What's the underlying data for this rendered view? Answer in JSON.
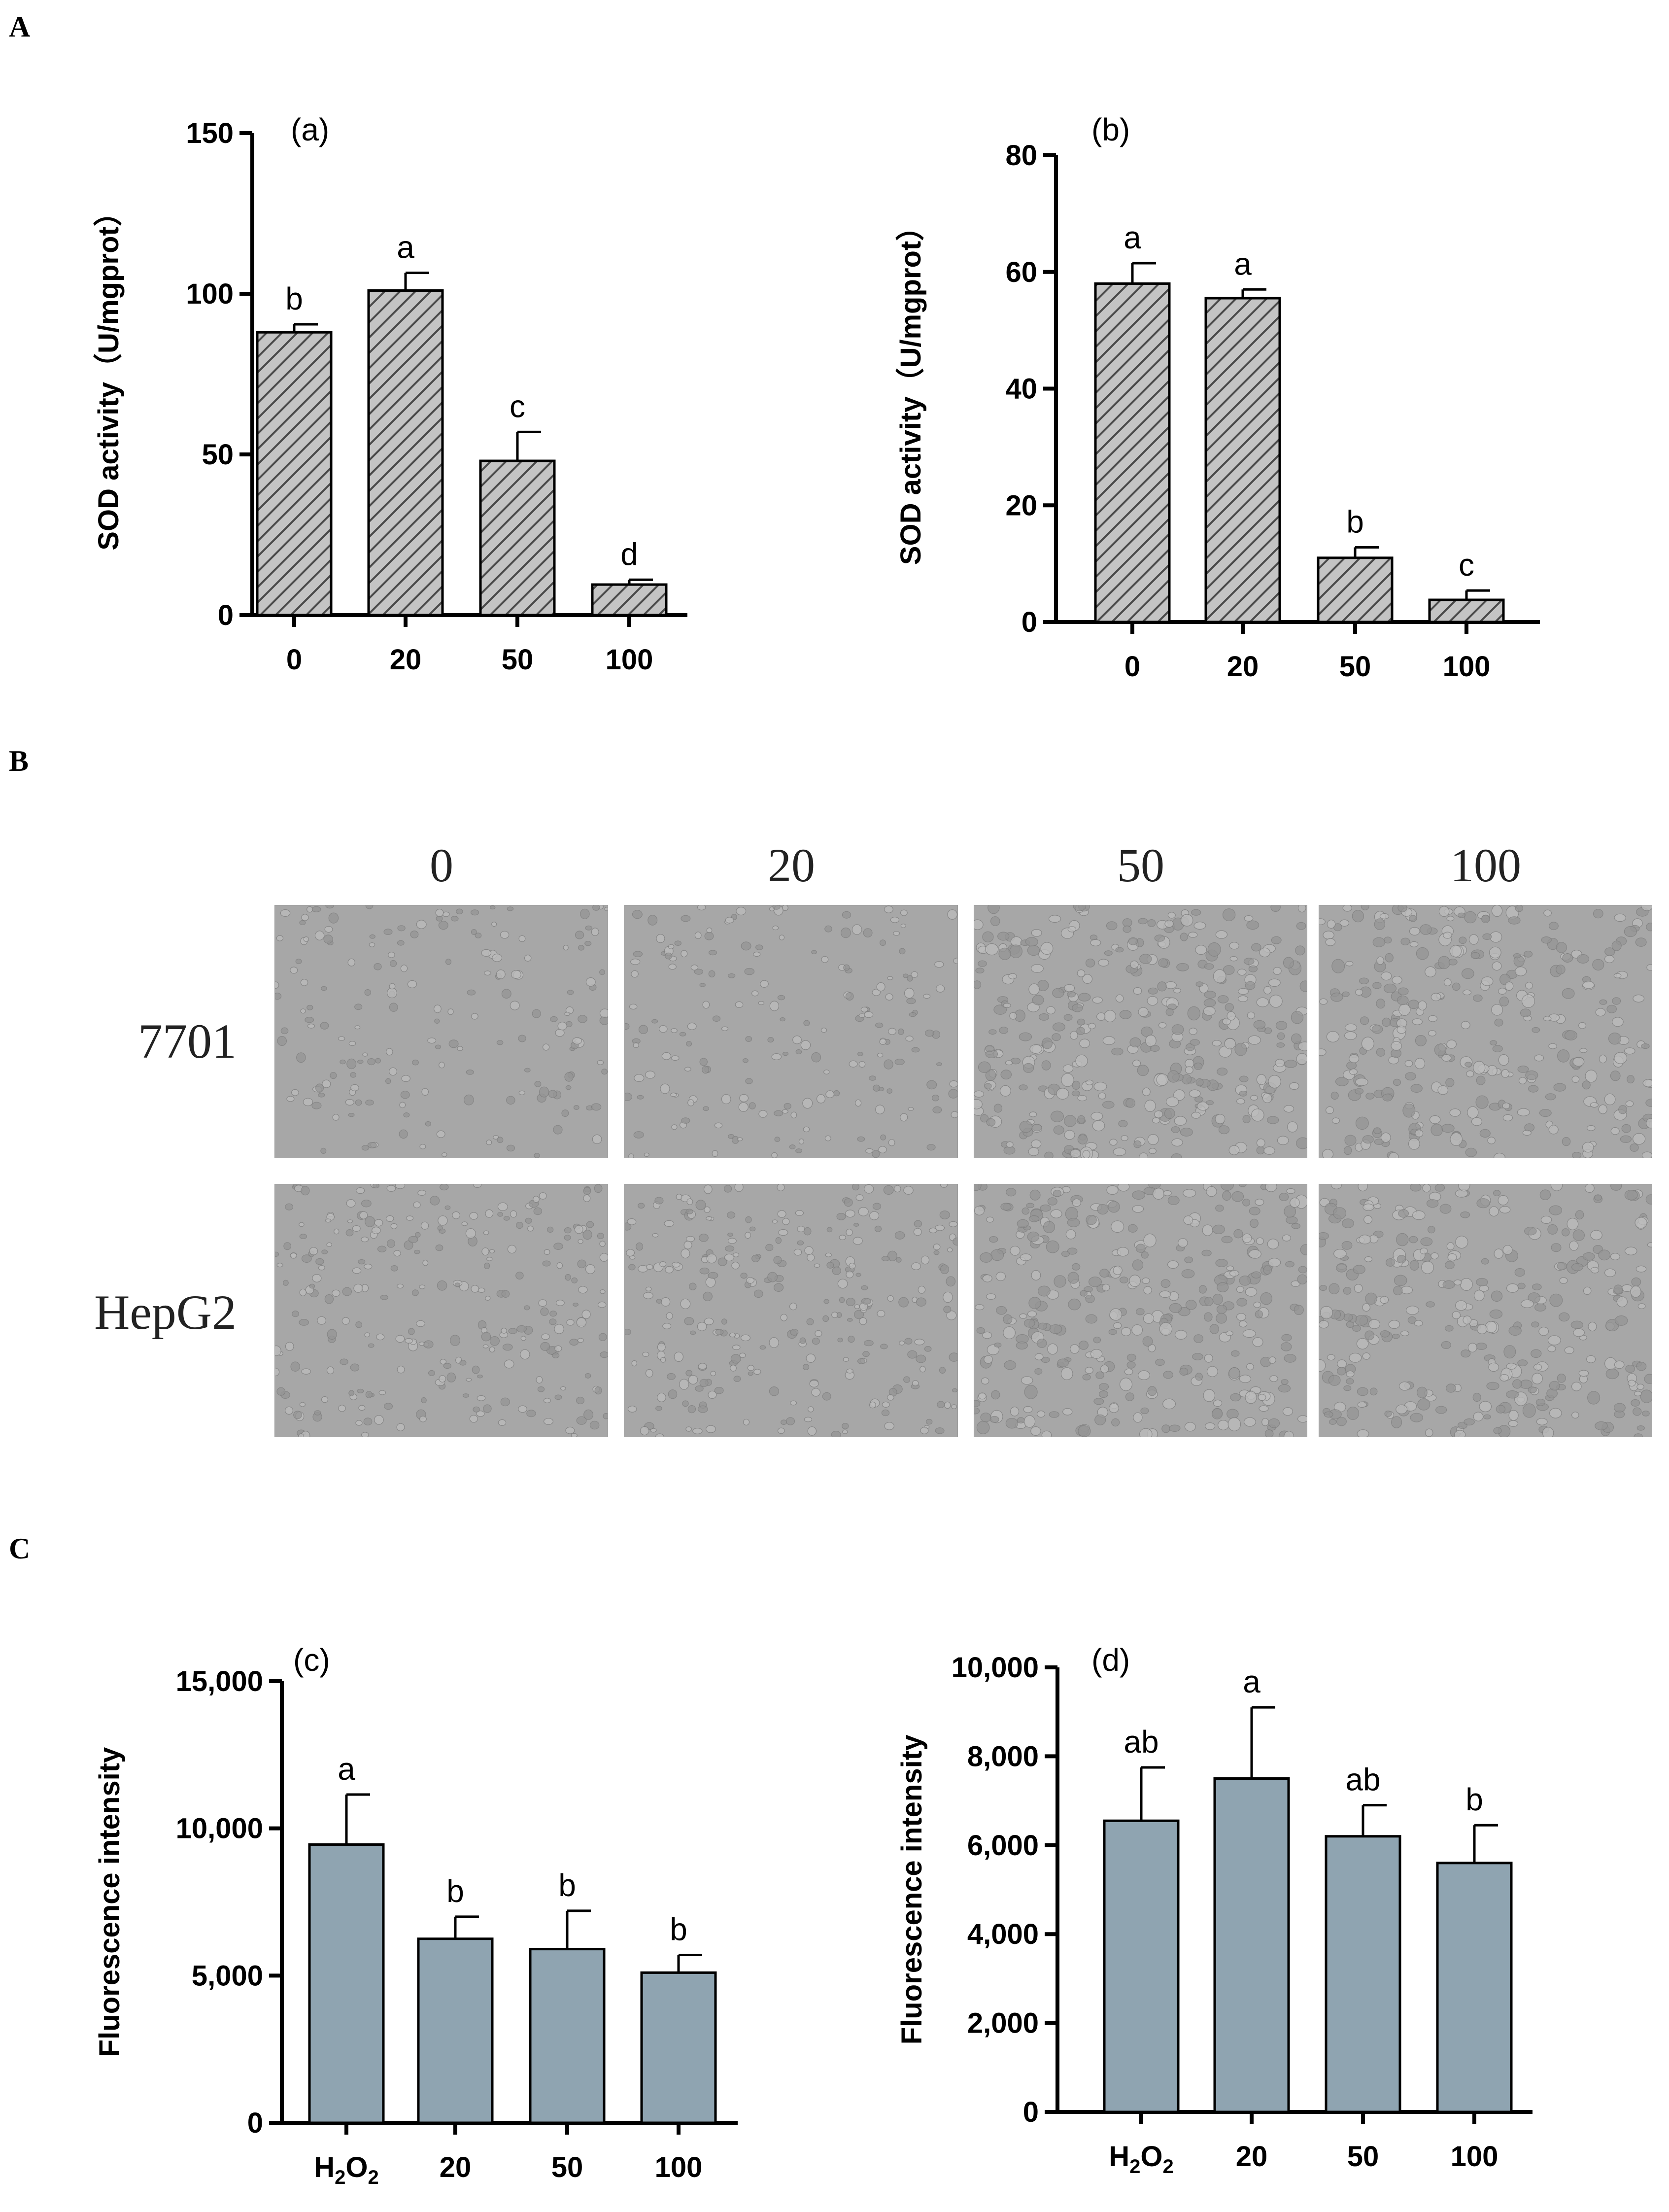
{
  "panel_labels": {
    "A": "A",
    "B": "B",
    "C": "C"
  },
  "chart_data": [
    {
      "id": "a",
      "type": "bar",
      "title": "(a)",
      "xlabel": "",
      "ylabel": "SOD activity（U/mgprot）",
      "categories": [
        "0",
        "20",
        "50",
        "100"
      ],
      "values": [
        88,
        101,
        48,
        9.5
      ],
      "errors": [
        2.5,
        5.5,
        9,
        1.5
      ],
      "letters": [
        "b",
        "a",
        "c",
        "d"
      ],
      "ylim": [
        0,
        150
      ],
      "yticks": [
        "0",
        "50",
        "100",
        "150"
      ],
      "fill": "hatch"
    },
    {
      "id": "b",
      "type": "bar",
      "title": "(b)",
      "xlabel": "",
      "ylabel": "SOD activity（U/mgprot）",
      "categories": [
        "0",
        "20",
        "50",
        "100"
      ],
      "values": [
        58,
        55.5,
        11,
        3.8
      ],
      "errors": [
        3.5,
        1.5,
        1.8,
        1.6
      ],
      "letters": [
        "a",
        "a",
        "b",
        "c"
      ],
      "ylim": [
        0,
        80
      ],
      "yticks": [
        "0",
        "20",
        "40",
        "60",
        "80"
      ],
      "fill": "hatch"
    },
    {
      "id": "c",
      "type": "bar",
      "title": "(c)",
      "xlabel": "",
      "ylabel": "Fluorescence intensity",
      "categories": [
        "H2O2",
        "20",
        "50",
        "100"
      ],
      "values": [
        9450,
        6250,
        5900,
        5100
      ],
      "errors": [
        1700,
        750,
        1300,
        600
      ],
      "letters": [
        "a",
        "b",
        "b",
        "b"
      ],
      "ylim": [
        0,
        15000
      ],
      "yticks": [
        "0",
        "5,000",
        "10,000",
        "15,000"
      ],
      "fill": "#8fa4b1"
    },
    {
      "id": "d",
      "type": "bar",
      "title": "(d)",
      "xlabel": "",
      "ylabel": "Fluorescence intensity",
      "categories": [
        "H2O2",
        "20",
        "50",
        "100"
      ],
      "values": [
        6550,
        7500,
        6200,
        5600
      ],
      "errors": [
        1200,
        1600,
        700,
        850
      ],
      "letters": [
        "ab",
        "a",
        "ab",
        "b"
      ],
      "ylim": [
        0,
        10000
      ],
      "yticks": [
        "0",
        "2,000",
        "4,000",
        "6,000",
        "8,000",
        "10,000"
      ],
      "fill": "#8fa4b1"
    }
  ],
  "micrographs": {
    "columns": [
      "0",
      "20",
      "50",
      "100"
    ],
    "rows": [
      "7701",
      "HepG2"
    ]
  },
  "colors": {
    "bar_fc": "#8fa4b1",
    "hatch": "#444444",
    "hatch_bg": "#c4c4c4",
    "micro_bg": "#a7a7a7"
  }
}
